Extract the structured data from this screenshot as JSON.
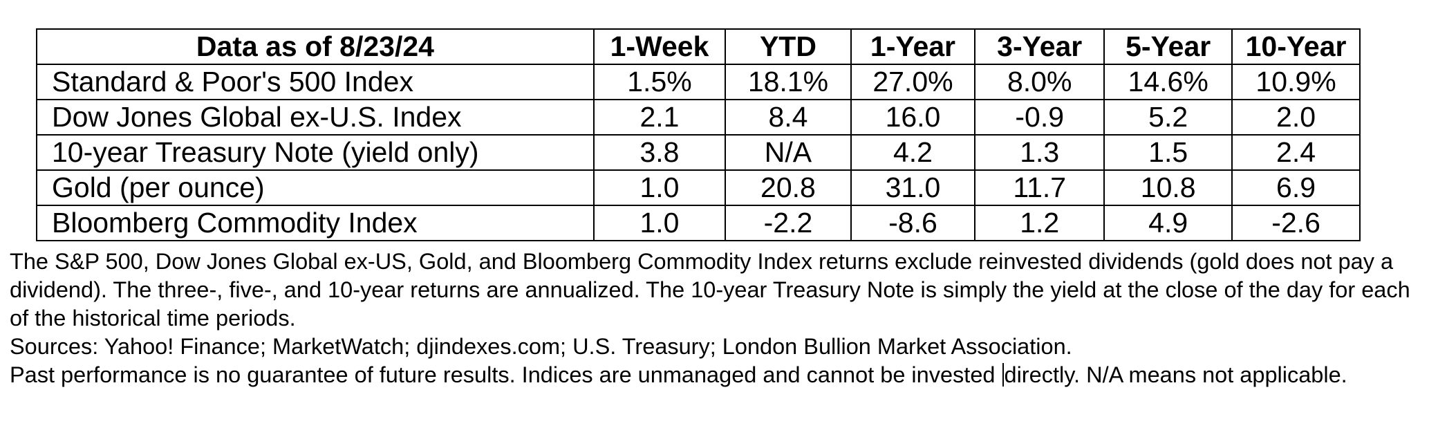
{
  "table": {
    "headers": {
      "label": "Data as of 8/23/24",
      "w1": "1-Week",
      "ytd": "YTD",
      "y1": "1-Year",
      "y3": "3-Year",
      "y5": "5-Year",
      "y10": "10-Year"
    },
    "rows": [
      {
        "name": "Standard & Poor's 500 Index",
        "w1": "1.5%",
        "ytd": "18.1%",
        "y1": "27.0%",
        "y3": "8.0%",
        "y5": "14.6%",
        "y10": "10.9%"
      },
      {
        "name": "Dow Jones Global ex-U.S. Index",
        "w1": "2.1",
        "ytd": "8.4",
        "y1": "16.0",
        "y3": "-0.9",
        "y5": "5.2",
        "y10": "2.0"
      },
      {
        "name": "10-year Treasury Note (yield only)",
        "w1": "3.8",
        "ytd": "N/A",
        "y1": "4.2",
        "y3": "1.3",
        "y5": "1.5",
        "y10": "2.4"
      },
      {
        "name": "Gold (per ounce)",
        "w1": "1.0",
        "ytd": "20.8",
        "y1": "31.0",
        "y3": "11.7",
        "y5": "10.8",
        "y10": "6.9"
      },
      {
        "name": "Bloomberg Commodity Index",
        "w1": "1.0",
        "ytd": "-2.2",
        "y1": "-8.6",
        "y3": "1.2",
        "y5": "4.9",
        "y10": "-2.6"
      }
    ]
  },
  "notes": {
    "methodology": "The S&P 500, Dow Jones Global ex-US, Gold, and Bloomberg Commodity Index returns exclude reinvested dividends (gold does not pay a dividend). The three-, five-, and 10-year returns are annualized. The 10-year Treasury Note is simply the yield at the close of the day for each of the historical time periods.",
    "sources": "Sources: Yahoo! Finance; MarketWatch; djindexes.com; U.S. Treasury; London Bullion Market Association.",
    "disclaimer_before_cursor": "Past performance is no guarantee of future results. Indices are unmanaged and cannot be invested ",
    "disclaimer_after_cursor": "directly. N/A means not applicable."
  }
}
